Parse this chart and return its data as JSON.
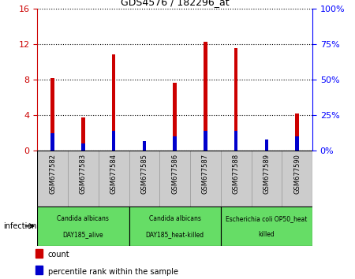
{
  "title": "GDS4576 / 182296_at",
  "samples": [
    "GSM677582",
    "GSM677583",
    "GSM677584",
    "GSM677585",
    "GSM677586",
    "GSM677587",
    "GSM677588",
    "GSM677589",
    "GSM677590"
  ],
  "count_values": [
    8.2,
    3.7,
    10.8,
    0.3,
    7.6,
    12.2,
    11.5,
    0.3,
    4.2
  ],
  "percentile_values": [
    1.92,
    0.8,
    2.24,
    1.12,
    1.6,
    2.24,
    2.24,
    1.28,
    1.6
  ],
  "ylim_left": [
    0,
    16
  ],
  "ylim_right": [
    0,
    100
  ],
  "yticks_left": [
    0,
    4,
    8,
    12,
    16
  ],
  "yticks_right": [
    0,
    25,
    50,
    75,
    100
  ],
  "yticklabels_left": [
    "0",
    "4",
    "8",
    "12",
    "16"
  ],
  "yticklabels_right": [
    "0%",
    "25%",
    "50%",
    "75%",
    "100%"
  ],
  "bar_color_count": "#cc0000",
  "bar_color_percentile": "#0000cc",
  "bar_width": 0.12,
  "groups": [
    {
      "label": "Candida albicans\nDAY185_alive",
      "start": 0,
      "end": 3,
      "color": "#66dd66"
    },
    {
      "label": "Candida albicans\nDAY185_heat-killed",
      "start": 3,
      "end": 6,
      "color": "#66dd66"
    },
    {
      "label": "Escherichia coli OP50_heat\nkilled",
      "start": 6,
      "end": 9,
      "color": "#66dd66"
    }
  ],
  "group_label": "infection",
  "legend_items": [
    {
      "color": "#cc0000",
      "label": "count"
    },
    {
      "color": "#0000cc",
      "label": "percentile rank within the sample"
    }
  ],
  "plot_bg_color": "#ffffff",
  "tick_bg_color": "#cccccc",
  "border_color": "#999999"
}
